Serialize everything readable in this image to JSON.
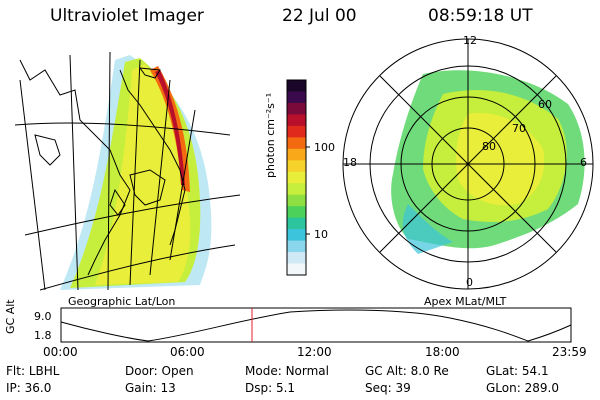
{
  "header": {
    "title": "Ultraviolet Imager",
    "date": "22 Jul 00",
    "time": "08:59:18 UT"
  },
  "colorbar": {
    "unit": "photon cm⁻²s⁻¹",
    "ticks": [
      "100",
      "10"
    ],
    "colors": [
      "#1a0628",
      "#3a0a4c",
      "#7a0a3a",
      "#b8102a",
      "#e02a1c",
      "#f36a10",
      "#f8a818",
      "#f6d22a",
      "#e8ee3a",
      "#c6ee3c",
      "#8ee042",
      "#4cd25a",
      "#2cc49c",
      "#3cc4dc",
      "#8ad6ec",
      "#cfeaf4",
      "#f2f7fa"
    ]
  },
  "left_map": {
    "label": "Geographic Lat/Lon",
    "colors": {
      "land": "#000000",
      "grid": "#000000"
    }
  },
  "right_map": {
    "label": "Apex MLat/MLT",
    "mlt_labels": {
      "top": "12",
      "left": "18",
      "right": "6",
      "bottom": "0"
    },
    "lat_labels": [
      "60",
      "70",
      "80"
    ]
  },
  "timeline": {
    "axis_label": "GC Alt",
    "y_ticks": [
      "9.0",
      "1.8"
    ],
    "x_ticks": [
      "00:00",
      "06:00",
      "12:00",
      "18:00",
      "23:59"
    ],
    "marker_color": "#e0202c"
  },
  "footer": {
    "row1": [
      {
        "label": "Flt:",
        "value": "LBHL"
      },
      {
        "label": "Door:",
        "value": "Open"
      },
      {
        "label": "Mode:",
        "value": "Normal"
      },
      {
        "label": "GC Alt:",
        "value": "8.0 Re"
      },
      {
        "label": "GLat:",
        "value": "54.1"
      }
    ],
    "row2": [
      {
        "label": "IP:",
        "value": "36.0"
      },
      {
        "label": "Gain:",
        "value": "13"
      },
      {
        "label": "Dsp:",
        "value": "5.1"
      },
      {
        "label": "Seq:",
        "value": "39"
      },
      {
        "label": "GLon:",
        "value": "289.0"
      }
    ]
  }
}
